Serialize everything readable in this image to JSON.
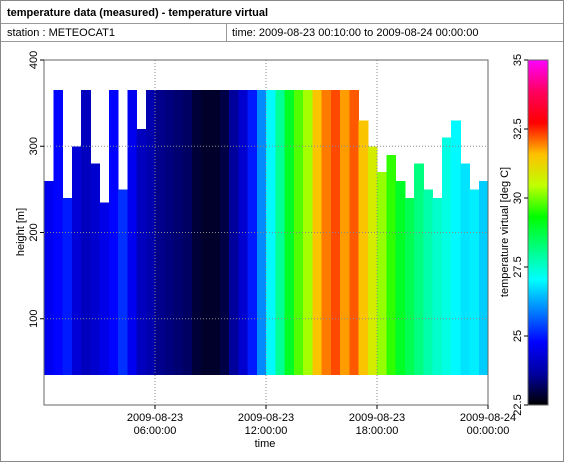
{
  "chart_data": {
    "type": "heatmap",
    "title": "temperature data (measured) - temperature virtual",
    "station": "station : METEOCAT1",
    "period": "time: 2009-08-23 00:10:00 to 2009-08-24 00:00:00",
    "x_label": "time",
    "y_label": "height [m]",
    "colorbar_label": "temperature virtual [deg C]",
    "xlim": [
      "2009-08-23 00:00:00",
      "2009-08-24 00:00:00"
    ],
    "xticks": [
      "2009-08-23 06:00:00",
      "2009-08-23 12:00:00",
      "2009-08-23 18:00:00",
      "2009-08-24 00:00:00"
    ],
    "ylim": [
      0,
      400
    ],
    "yticks": [
      100,
      200,
      300,
      400
    ],
    "clim": [
      22.5,
      35
    ],
    "cticks": [
      22.5,
      25,
      27.5,
      30,
      32.5,
      35
    ],
    "colorscale": [
      "#000000",
      "#0000a0",
      "#0000ff",
      "#0080ff",
      "#00ffff",
      "#00ff80",
      "#00ff00",
      "#c0ff00",
      "#ffc000",
      "#ff0000",
      "#ff0060",
      "#ff00ff"
    ],
    "grid": true,
    "base": 35,
    "x": [
      "2009-08-23 00:30:00",
      "2009-08-23 01:00:00",
      "2009-08-23 01:30:00",
      "2009-08-23 02:00:00",
      "2009-08-23 02:30:00",
      "2009-08-23 03:00:00",
      "2009-08-23 03:30:00",
      "2009-08-23 04:00:00",
      "2009-08-23 04:30:00",
      "2009-08-23 05:00:00",
      "2009-08-23 05:30:00",
      "2009-08-23 06:00:00",
      "2009-08-23 06:30:00",
      "2009-08-23 07:00:00",
      "2009-08-23 07:30:00",
      "2009-08-23 08:00:00",
      "2009-08-23 08:30:00",
      "2009-08-23 09:00:00",
      "2009-08-23 09:30:00",
      "2009-08-23 10:00:00",
      "2009-08-23 10:30:00",
      "2009-08-23 11:00:00",
      "2009-08-23 11:30:00",
      "2009-08-23 12:00:00",
      "2009-08-23 12:30:00",
      "2009-08-23 13:00:00",
      "2009-08-23 13:30:00",
      "2009-08-23 14:00:00",
      "2009-08-23 14:30:00",
      "2009-08-23 15:00:00",
      "2009-08-23 15:30:00",
      "2009-08-23 16:00:00",
      "2009-08-23 16:30:00",
      "2009-08-23 17:00:00",
      "2009-08-23 17:30:00",
      "2009-08-23 18:00:00",
      "2009-08-23 18:30:00",
      "2009-08-23 19:00:00",
      "2009-08-23 19:30:00",
      "2009-08-23 20:00:00",
      "2009-08-23 20:30:00",
      "2009-08-23 21:00:00",
      "2009-08-23 21:30:00",
      "2009-08-23 22:00:00",
      "2009-08-23 22:30:00",
      "2009-08-23 23:00:00",
      "2009-08-23 23:30:00",
      "2009-08-24 00:00:00"
    ],
    "values": [
      24.6,
      24.8,
      25.0,
      24.3,
      24.0,
      24.2,
      24.5,
      24.8,
      25.2,
      24.6,
      24.0,
      23.8,
      23.5,
      23.4,
      23.3,
      23.2,
      22.9,
      22.8,
      22.8,
      23.0,
      23.6,
      24.2,
      25.0,
      26.0,
      27.0,
      28.0,
      29.0,
      29.8,
      30.3,
      31.5,
      32.0,
      32.3,
      31.8,
      32.2,
      31.5,
      30.8,
      30.2,
      29.6,
      29.0,
      28.6,
      28.2,
      27.8,
      27.5,
      27.3,
      27.0,
      26.8,
      26.9,
      26.6
    ],
    "tops": [
      260,
      365,
      240,
      300,
      365,
      280,
      235,
      365,
      250,
      365,
      320,
      365,
      365,
      365,
      365,
      365,
      365,
      365,
      365,
      365,
      365,
      365,
      365,
      365,
      365,
      365,
      365,
      365,
      365,
      365,
      365,
      365,
      365,
      365,
      330,
      300,
      270,
      290,
      260,
      240,
      280,
      250,
      240,
      310,
      330,
      280,
      250,
      260
    ]
  }
}
